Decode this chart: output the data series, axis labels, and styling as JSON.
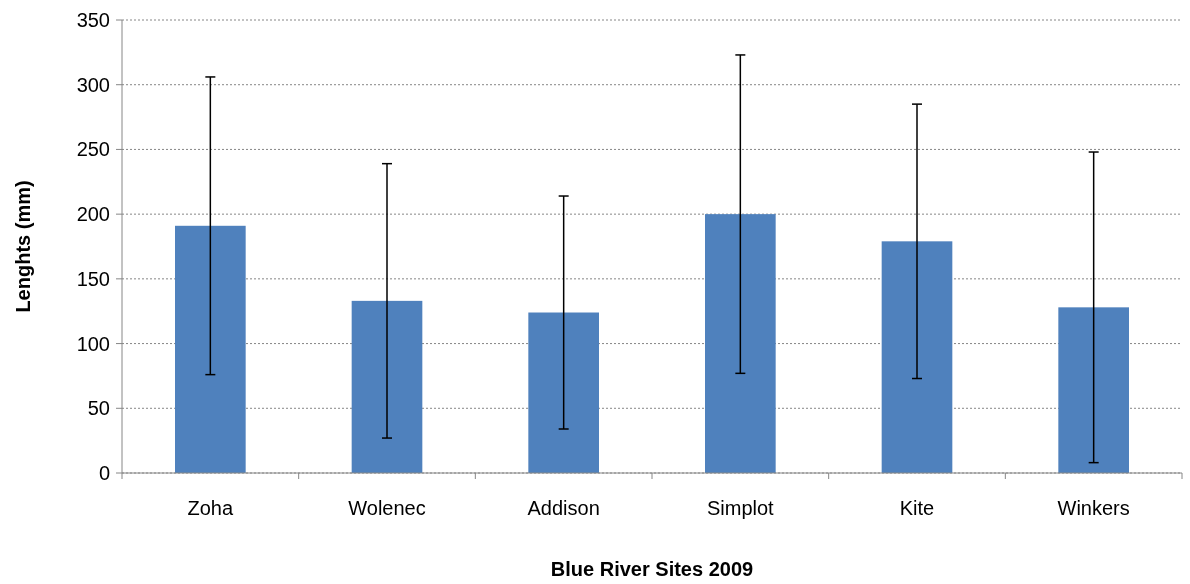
{
  "chart_data": {
    "type": "bar",
    "xlabel": "Blue River Sites 2009",
    "ylabel": "Lenghts (mm)",
    "categories": [
      "Zoha",
      "Wolenec",
      "Addison",
      "Simplot",
      "Kite",
      "Winkers"
    ],
    "series": [
      {
        "color": "#4f81bd",
        "values": [
          191,
          133,
          124,
          200,
          179,
          128
        ],
        "errors": [
          115,
          106,
          90,
          123,
          106,
          120
        ]
      }
    ],
    "ylim": [
      0,
      350
    ],
    "yticks": [
      0,
      50,
      100,
      150,
      200,
      250,
      300,
      350
    ],
    "grid": "y"
  }
}
